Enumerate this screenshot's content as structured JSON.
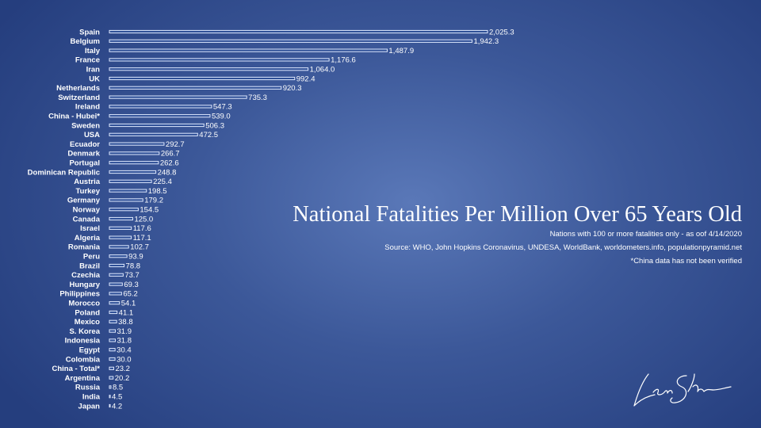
{
  "chart_data": {
    "type": "bar",
    "orientation": "horizontal",
    "title": "National Fatalities Per Million Over 65 Years Old",
    "subtitle": "Nations with 100 or more fatalities only - as oof 4/14/2020",
    "source": "Source: WHO, John Hopkins Coronavirus, UNDESA, WorldBank, worldometers.info, populationpyramid.net",
    "note": "*China data has not been verified",
    "categories": [
      "Spain",
      "Belgium",
      "Italy",
      "France",
      "Iran",
      "UK",
      "Netherlands",
      "Switzerland",
      "Ireland",
      "China - Hubei*",
      "Sweden",
      "USA",
      "Ecuador",
      "Denmark",
      "Portugal",
      "Dominican Republic",
      "Austria",
      "Turkey",
      "Germany",
      "Norway",
      "Canada",
      "Israel",
      "Algeria",
      "Romania",
      "Peru",
      "Brazil",
      "Czechia",
      "Hungary",
      "Philippines",
      "Morocco",
      "Poland",
      "Mexico",
      "S. Korea",
      "Indonesia",
      "Egypt",
      "Colombia",
      "China - Total*",
      "Argentina",
      "Russia",
      "India",
      "Japan"
    ],
    "values": [
      2025.3,
      1942.3,
      1487.9,
      1176.6,
      1064.0,
      992.4,
      920.3,
      735.3,
      547.3,
      539.0,
      506.3,
      472.5,
      292.7,
      266.7,
      262.6,
      248.8,
      225.4,
      198.5,
      179.2,
      154.5,
      125.0,
      117.6,
      117.1,
      102.7,
      93.9,
      78.8,
      73.7,
      69.3,
      65.2,
      54.1,
      41.1,
      38.8,
      31.9,
      31.8,
      30.4,
      30.0,
      23.2,
      20.2,
      8.5,
      4.5,
      4.2
    ],
    "value_labels": [
      "2,025.3",
      "1,942.3",
      "1,487.9",
      "1,176.6",
      "1,064.0",
      "992.4",
      "920.3",
      "735.3",
      "547.3",
      "539.0",
      "506.3",
      "472.5",
      "292.7",
      "266.7",
      "262.6",
      "248.8",
      "225.4",
      "198.5",
      "179.2",
      "154.5",
      "125.0",
      "117.6",
      "117.1",
      "102.7",
      "93.9",
      "78.8",
      "73.7",
      "69.3",
      "65.2",
      "54.1",
      "41.1",
      "38.8",
      "31.9",
      "31.8",
      "30.4",
      "30.0",
      "23.2",
      "20.2",
      "8.5",
      "4.5",
      "4.2"
    ],
    "grid": false,
    "legend": "none"
  },
  "colors": {
    "bar_fill": "#2e4f96",
    "bar_outline": "#dfe9ff",
    "text": "#ffffff"
  },
  "signature": {
    "icon": "handwritten-signature",
    "text": "Lenn Shirreba"
  }
}
